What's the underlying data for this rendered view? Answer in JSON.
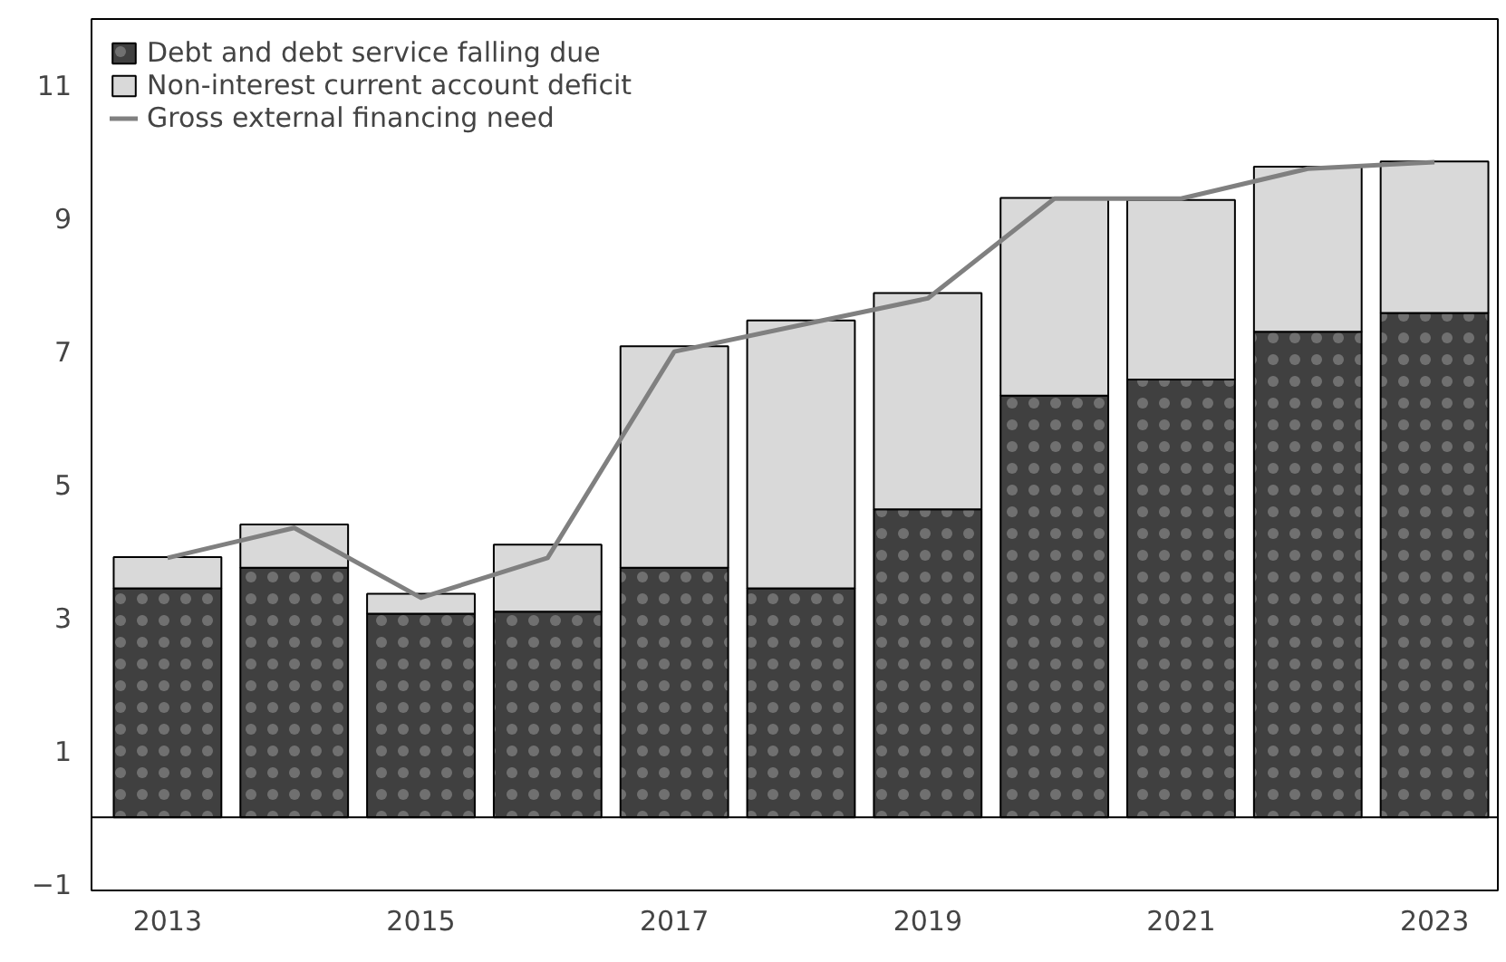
{
  "chart_data": {
    "type": "bar",
    "stacked": true,
    "categories": [
      "2013",
      null,
      "2015",
      null,
      "2017",
      null,
      "2019",
      null,
      "2021",
      null,
      "2023"
    ],
    "series": [
      {
        "name": "Debt and debt service falling due",
        "color": "#404040",
        "values": [
          3.44,
          3.75,
          3.06,
          3.09,
          3.75,
          3.44,
          4.63,
          6.34,
          6.58,
          7.3,
          7.58
        ]
      },
      {
        "name": "Non-interest current account deficit",
        "color": "#d9d9d9",
        "values": [
          0.47,
          0.65,
          0.3,
          1.01,
          3.33,
          4.03,
          3.25,
          2.97,
          2.7,
          2.48,
          2.28
        ]
      },
      {
        "name": "Gross external financing need",
        "type": "line",
        "color": "#808080",
        "values": [
          3.9,
          4.35,
          3.3,
          3.9,
          7.0,
          7.4,
          7.8,
          9.3,
          9.3,
          9.75,
          9.85
        ]
      }
    ],
    "ylim": [
      -1.1,
      12
    ],
    "yticks": [
      -1,
      1,
      3,
      5,
      7,
      9,
      11
    ],
    "ref_lines": [
      {
        "axis": "y",
        "value": 0
      }
    ],
    "grid": false,
    "legend": "top left",
    "marker": "none",
    "line_style": "solid"
  }
}
